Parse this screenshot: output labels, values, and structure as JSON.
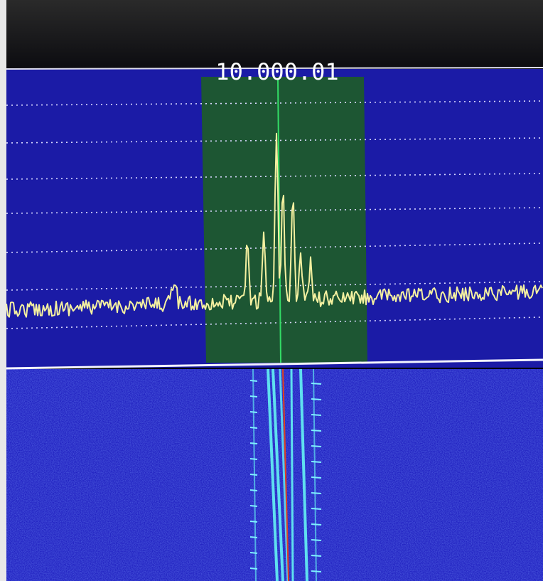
{
  "frequency_label": "10.000.01"
}
